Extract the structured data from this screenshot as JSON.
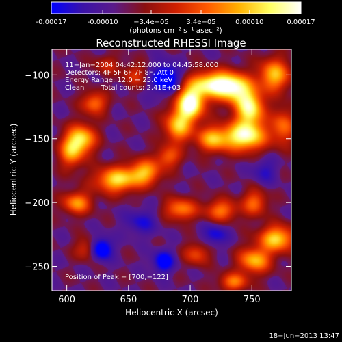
{
  "colorbar": {
    "ticks": [
      -0.00017,
      -0.0001,
      -3.4e-05,
      3.4e-05,
      0.0001,
      0.00017
    ],
    "tick_labels": [
      "-0.00017",
      "-0.00010",
      "−3.4e−05",
      "3.4e−05",
      "0.00010",
      "0.00017"
    ],
    "unit_label": "(photons cm⁻² s⁻¹ asec⁻²)",
    "range": [
      -0.00017,
      0.00017
    ],
    "colors": [
      "#0000ff",
      "#3a12a8",
      "#5a1a8a",
      "#8a1010",
      "#d02000",
      "#ff5a00",
      "#ffb000",
      "#ffff60",
      "#ffffff"
    ]
  },
  "chart_data": {
    "type": "heatmap",
    "title": "Reconstructed RHESSI Image",
    "xlabel": "Heliocentric X (arcsec)",
    "ylabel": "Heliocentric Y (arcsec)",
    "xlim": [
      588,
      782
    ],
    "ylim": [
      -269,
      -80
    ],
    "xticks": [
      600,
      650,
      700,
      750
    ],
    "yticks": [
      -100,
      -150,
      -200,
      -250
    ],
    "xtick_labels": [
      "600",
      "650",
      "700",
      "750"
    ],
    "ytick_labels": [
      "−100",
      "−150",
      "−200",
      "−250"
    ],
    "annotations": {
      "time_range": "11−Jan−2004 04:42:12.000 to 04:45:58.000",
      "detectors": "Detectors: 4F 5F 6F 7F 8F, Att 0",
      "energy": "Energy Range: 12.0 − 25.0 keV",
      "clean": "Clean",
      "total_counts": "Total counts: 2.41E+03",
      "peak": "Position of Peak = [700,−122]"
    },
    "blobs": [
      {
        "x": 700,
        "y": -122,
        "sx": 8,
        "sy": 9,
        "a": 1.3
      },
      {
        "x": 690,
        "y": -140,
        "sx": 8,
        "sy": 9,
        "a": 0.85
      },
      {
        "x": 717,
        "y": -107,
        "sx": 12,
        "sy": 7,
        "a": 1.05
      },
      {
        "x": 735,
        "y": -110,
        "sx": 10,
        "sy": 8,
        "a": 1.0
      },
      {
        "x": 748,
        "y": -126,
        "sx": 8,
        "sy": 10,
        "a": 1.1
      },
      {
        "x": 744,
        "y": -148,
        "sx": 12,
        "sy": 8,
        "a": 1.15
      },
      {
        "x": 718,
        "y": -150,
        "sx": 9,
        "sy": 7,
        "a": 0.8
      },
      {
        "x": 768,
        "y": -100,
        "sx": 9,
        "sy": 9,
        "a": 0.85
      },
      {
        "x": 775,
        "y": -140,
        "sx": 7,
        "sy": 10,
        "a": 0.6
      },
      {
        "x": 622,
        "y": -122,
        "sx": 7,
        "sy": 6,
        "a": 0.65
      },
      {
        "x": 612,
        "y": -150,
        "sx": 8,
        "sy": 8,
        "a": 0.9
      },
      {
        "x": 603,
        "y": -160,
        "sx": 7,
        "sy": 9,
        "a": 0.7
      },
      {
        "x": 640,
        "y": -182,
        "sx": 12,
        "sy": 7,
        "a": 0.95
      },
      {
        "x": 663,
        "y": -176,
        "sx": 9,
        "sy": 7,
        "a": 0.8
      },
      {
        "x": 608,
        "y": -200,
        "sx": 8,
        "sy": 6,
        "a": 0.75
      },
      {
        "x": 682,
        "y": -164,
        "sx": 7,
        "sy": 6,
        "a": 0.55
      },
      {
        "x": 692,
        "y": -205,
        "sx": 9,
        "sy": 6,
        "a": 0.7
      },
      {
        "x": 725,
        "y": -206,
        "sx": 9,
        "sy": 6,
        "a": 0.65
      },
      {
        "x": 752,
        "y": -200,
        "sx": 7,
        "sy": 7,
        "a": 0.6
      },
      {
        "x": 770,
        "y": -228,
        "sx": 10,
        "sy": 7,
        "a": 0.95
      },
      {
        "x": 752,
        "y": -245,
        "sx": 9,
        "sy": 7,
        "a": 0.85
      },
      {
        "x": 735,
        "y": -262,
        "sx": 8,
        "sy": 5,
        "a": 0.65
      },
      {
        "x": 705,
        "y": -240,
        "sx": 7,
        "sy": 6,
        "a": 0.5
      },
      {
        "x": 615,
        "y": -236,
        "sx": 6,
        "sy": 6,
        "a": 0.4
      },
      {
        "x": 655,
        "y": -100,
        "sx": 7,
        "sy": 6,
        "a": 0.4
      },
      {
        "x": 632,
        "y": -92,
        "sx": 7,
        "sy": 5,
        "a": 0.35
      },
      {
        "x": 680,
        "y": -103,
        "sx": 8,
        "sy": 8,
        "a": -0.7
      },
      {
        "x": 628,
        "y": -236,
        "sx": 6,
        "sy": 6,
        "a": -0.7
      },
      {
        "x": 678,
        "y": -246,
        "sx": 6,
        "sy": 6,
        "a": -0.6
      },
      {
        "x": 720,
        "y": -225,
        "sx": 7,
        "sy": 6,
        "a": -0.4
      },
      {
        "x": 660,
        "y": -215,
        "sx": 9,
        "sy": 7,
        "a": -0.35
      },
      {
        "x": 760,
        "y": -175,
        "sx": 7,
        "sy": 7,
        "a": -0.3
      }
    ]
  },
  "footer": {
    "timestamp": "18−Jun−2013 13:47"
  }
}
